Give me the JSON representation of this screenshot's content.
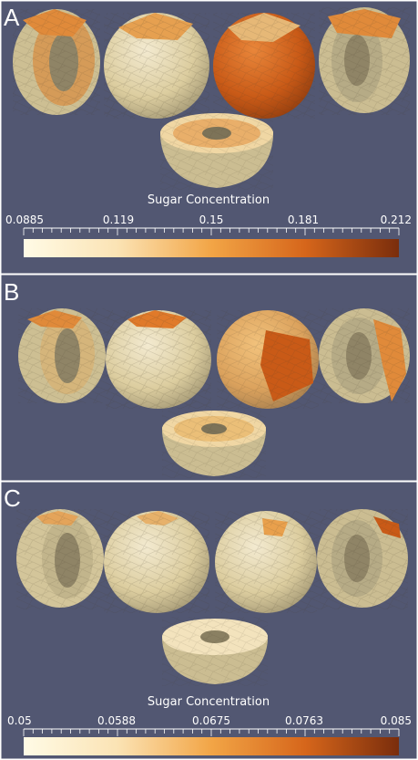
{
  "panels": [
    {
      "letter": "A",
      "variant": "high"
    },
    {
      "letter": "B",
      "variant": "mid"
    },
    {
      "letter": "C",
      "variant": "low"
    }
  ],
  "colorbars": [
    {
      "title": "Sugar Concentration",
      "ticks": [
        "0.0885",
        "0.119",
        "0.15",
        "0.181",
        "0.212"
      ]
    },
    {
      "title": "Sugar Concentration",
      "ticks": [
        "0.05",
        "0.0588",
        "0.0675",
        "0.0763",
        "0.085"
      ]
    }
  ],
  "colors": {
    "background": "#525772",
    "ramp_low": "#fffbe6",
    "ramp_mid": "#f2a546",
    "ramp_high": "#7a2d0c",
    "flesh": "#e8dcae",
    "flesh_shadow": "#b6ab86",
    "panel_border": "#ffffff"
  }
}
